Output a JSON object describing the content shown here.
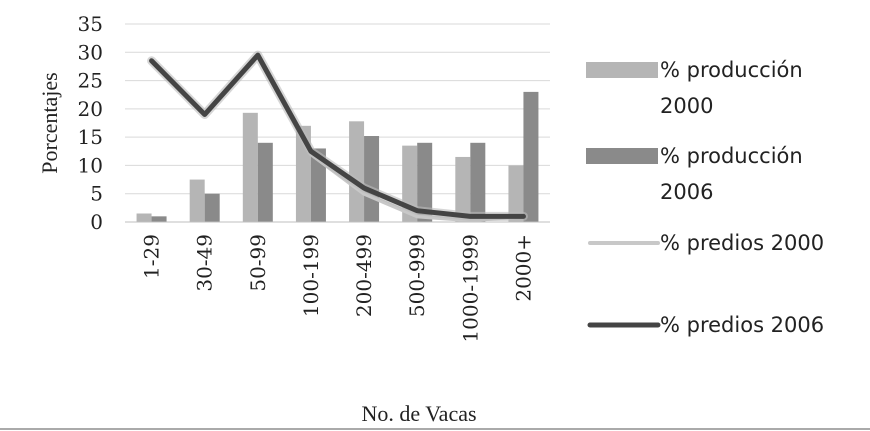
{
  "chart_data": {
    "type": "bar",
    "categories": [
      "1-29",
      "30-49",
      "50-99",
      "100-199",
      "200-499",
      "500-999",
      "1000-1999",
      "2000+"
    ],
    "series": [
      {
        "name": "% producción 2000",
        "kind": "bar",
        "values": [
          1.5,
          7.5,
          19.3,
          17.0,
          17.8,
          13.5,
          11.5,
          10.0
        ],
        "color": "#b5b5b5"
      },
      {
        "name": "% producción 2006",
        "kind": "bar",
        "values": [
          1.0,
          5.0,
          14.0,
          13.0,
          15.2,
          14.0,
          14.0,
          23.0
        ],
        "color": "#8a8a8a"
      },
      {
        "name": "% predios 2000",
        "kind": "line",
        "values": [
          28.5,
          19.0,
          29.5,
          12.0,
          5.0,
          1.0,
          0.3,
          1.0
        ],
        "color": "#c8c8c8"
      },
      {
        "name": "% predios 2006",
        "kind": "line",
        "values": [
          28.5,
          19.0,
          29.5,
          12.5,
          6.0,
          2.0,
          1.0,
          1.0
        ],
        "color": "#444444"
      }
    ],
    "xlabel": "No. de Vacas",
    "ylabel": "Porcentajes",
    "ylim": [
      0,
      35
    ],
    "yticks": [
      0,
      5,
      10,
      15,
      20,
      25,
      30,
      35
    ],
    "grid": true,
    "legend": "right",
    "legend_labels": [
      [
        "% producción",
        "2000"
      ],
      [
        "% producción",
        "2006"
      ],
      [
        "% predios 2000"
      ],
      [
        "% predios 2006"
      ]
    ]
  }
}
